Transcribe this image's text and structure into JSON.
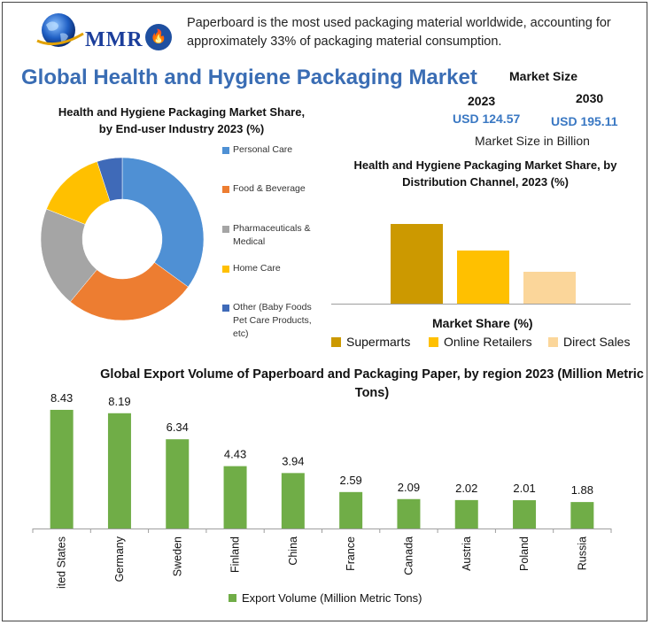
{
  "header": {
    "logo_text": "MMR",
    "fact_icon": "flame-icon",
    "fact_text": "Paperboard is the most used packaging material worldwide, accounting for approximately 33% of packaging material consumption.",
    "title": "Global Health and Hygiene Packaging Market"
  },
  "market_size": {
    "title": "Market Size",
    "year1": "2023",
    "year2": "2030",
    "value1": "USD 124.57",
    "value2": "USD 195.11",
    "unit": "Market Size in Billion"
  },
  "colors": {
    "title": "#3a6db4",
    "export_bar": "#70ad47"
  },
  "chart_data": [
    {
      "type": "pie",
      "variant": "donut",
      "title": "Health and Hygiene Packaging Market Share, by End-user Industry 2023 (%)",
      "categories": [
        "Personal Care",
        "Food & Beverage",
        "Pharmaceuticals & Medical",
        "Home Care",
        "Other (Baby Foods Pet Care Products, etc)"
      ],
      "values": [
        35,
        26,
        20,
        14,
        5
      ],
      "colors": [
        "#4f90d4",
        "#ed7d31",
        "#a5a5a5",
        "#ffc000",
        "#3f6ab8"
      ],
      "legend_position": "right"
    },
    {
      "type": "bar",
      "title": "Health and Hygiene Packaging Market Share, by Distribution Channel, 2023 (%)",
      "xlabel": "Market Share (%)",
      "categories": [
        "Supermarts",
        "Online Retailers",
        "Direct Sales"
      ],
      "values": [
        45,
        30,
        18
      ],
      "colors": [
        "#cc9900",
        "#ffc000",
        "#fbd69a"
      ],
      "ylim": [
        0,
        55
      ],
      "legend_position": "bottom"
    },
    {
      "type": "bar",
      "title": "Global Export Volume of Paperboard and Packaging Paper, by region 2023 (Million Metric Tons)",
      "categories": [
        "United States",
        "Germany",
        "Sweden",
        "Finland",
        "China",
        "France",
        "Canada",
        "Austria",
        "Poland",
        "Russia"
      ],
      "series": [
        {
          "name": "Export Volume (Million Metric Tons)",
          "values": [
            8.43,
            8.19,
            6.34,
            4.43,
            3.94,
            2.59,
            2.09,
            2.02,
            2.01,
            1.88
          ]
        }
      ],
      "ylim": [
        0,
        9
      ],
      "grid": false,
      "legend_position": "bottom"
    }
  ]
}
